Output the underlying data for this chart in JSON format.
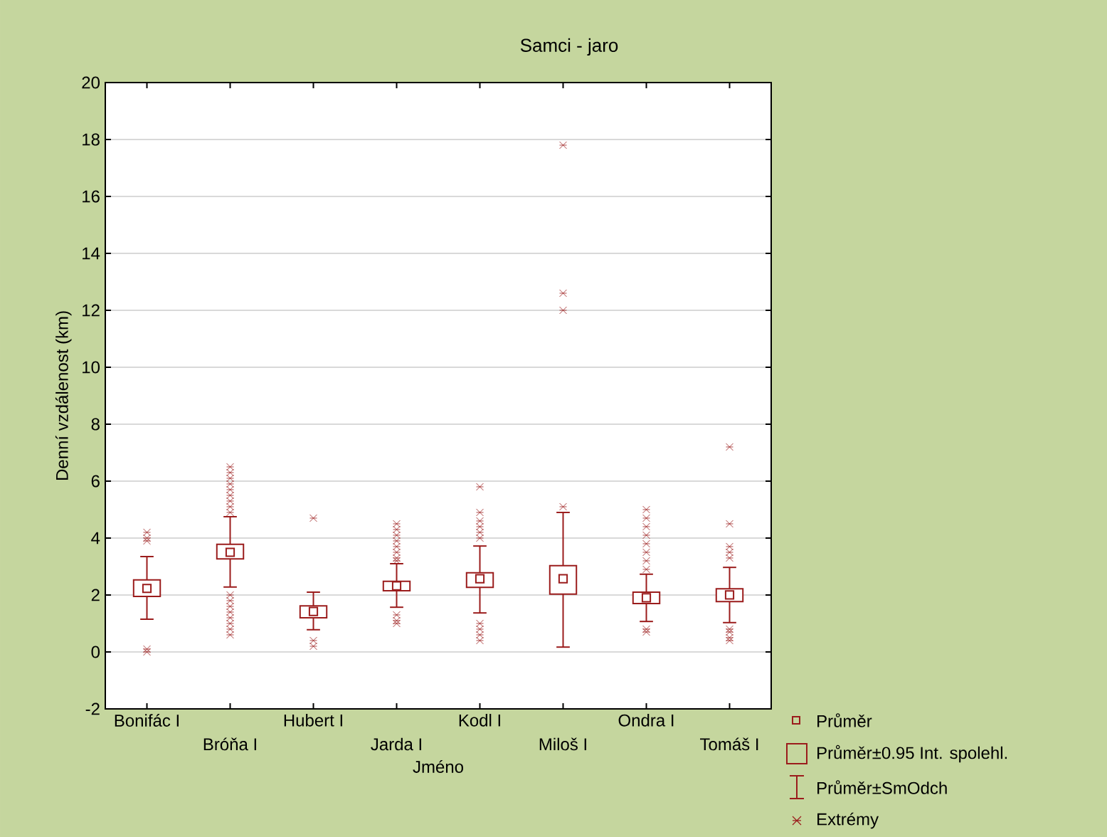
{
  "chart_data": {
    "type": "box",
    "title": "Samci - jaro",
    "xlabel": "Jméno",
    "ylabel": "Denní vzdálenost (km)",
    "categories": [
      "Bonifác I",
      "Bróňa I",
      "Hubert I",
      "Jarda I",
      "Kodl I",
      "Miloš I",
      "Ondra I",
      "Tomáš I"
    ],
    "color": "#9b1c1c",
    "boxes": [
      {
        "low": 1.15,
        "q1": 1.95,
        "q3": 2.53,
        "high": 3.35,
        "mean": 2.23,
        "outliers": [
          4.2,
          4.0,
          3.9,
          0.1,
          0.0
        ]
      },
      {
        "low": 2.28,
        "q1": 3.27,
        "q3": 3.78,
        "high": 4.75,
        "mean": 3.5,
        "outliers": [
          6.5,
          6.3,
          6.1,
          5.9,
          5.7,
          5.5,
          5.3,
          5.1,
          4.9,
          2.0,
          1.8,
          1.6,
          1.4,
          1.2,
          1.0,
          0.8,
          0.6
        ]
      },
      {
        "low": 0.78,
        "q1": 1.2,
        "q3": 1.62,
        "high": 2.1,
        "mean": 1.42,
        "outliers": [
          4.7,
          0.4,
          0.2
        ]
      },
      {
        "low": 1.57,
        "q1": 2.15,
        "q3": 2.48,
        "high": 3.1,
        "mean": 2.32,
        "outliers": [
          4.5,
          4.3,
          4.1,
          3.9,
          3.7,
          3.5,
          3.3,
          3.2,
          1.3,
          1.1,
          1.0
        ]
      },
      {
        "low": 1.37,
        "q1": 2.27,
        "q3": 2.78,
        "high": 3.72,
        "mean": 2.57,
        "outliers": [
          5.8,
          4.9,
          4.6,
          4.4,
          4.2,
          4.0,
          1.0,
          0.8,
          0.6,
          0.4
        ]
      },
      {
        "low": 0.17,
        "q1": 2.03,
        "q3": 3.03,
        "high": 4.9,
        "mean": 2.57,
        "outliers": [
          17.8,
          12.6,
          12.0,
          5.1
        ]
      },
      {
        "low": 1.07,
        "q1": 1.7,
        "q3": 2.1,
        "high": 2.73,
        "mean": 1.9,
        "outliers": [
          5.0,
          4.7,
          4.4,
          4.1,
          3.8,
          3.5,
          3.2,
          2.9,
          0.8,
          0.7
        ]
      },
      {
        "low": 1.03,
        "q1": 1.77,
        "q3": 2.22,
        "high": 2.97,
        "mean": 2.0,
        "outliers": [
          7.2,
          4.5,
          3.7,
          3.5,
          3.3,
          0.8,
          0.7,
          0.5,
          0.4
        ]
      }
    ],
    "ylim": [
      -2,
      20
    ],
    "yticks": [
      -2,
      0,
      2,
      4,
      6,
      8,
      10,
      12,
      14,
      16,
      18,
      20
    ],
    "grid": "y",
    "annotations": [
      "Průměr",
      "Průměr±0.95 Int. spolehl.",
      "Průměr±SmOdch",
      "Extrémy"
    ]
  }
}
